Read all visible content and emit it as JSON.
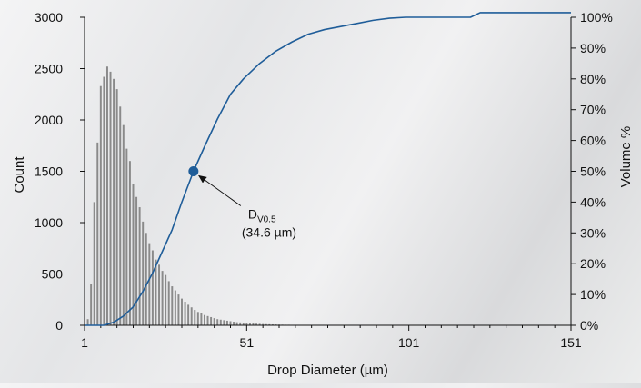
{
  "chart_data": {
    "type": "bar",
    "title": "",
    "xlabel": "Drop Diameter (µm)",
    "ylabel": "Count",
    "y2label": "Volume %",
    "xlim": [
      1,
      151
    ],
    "ylim": [
      0,
      3000
    ],
    "y2lim": [
      0,
      100
    ],
    "x_ticks": [
      "1",
      "51",
      "101",
      "151"
    ],
    "y_ticks": [
      "0",
      "500",
      "1000",
      "1500",
      "2000",
      "2500",
      "3000"
    ],
    "y2_ticks": [
      "0%",
      "10%",
      "20%",
      "30%",
      "40%",
      "50%",
      "60%",
      "70%",
      "80%",
      "90%",
      "100%"
    ],
    "grid": false,
    "legend": "none",
    "colors": {
      "bars": "#8a8a8a",
      "curve": "#1f5d99",
      "marker": "#1f5d99",
      "axis": "#111111"
    },
    "series": [
      {
        "type": "bar",
        "axis": "left",
        "x": [
          2,
          3,
          4,
          5,
          6,
          7,
          8,
          9,
          10,
          11,
          12,
          13,
          14,
          15,
          16,
          17,
          18,
          19,
          20,
          21,
          22,
          23,
          24,
          25,
          26,
          27,
          28,
          29,
          30,
          31,
          32,
          33,
          34,
          35,
          36,
          37,
          38,
          39,
          40,
          41,
          42,
          43,
          44,
          45,
          46,
          47,
          48,
          49,
          50,
          51,
          52,
          53,
          54,
          55,
          56,
          57,
          58,
          59,
          60,
          61,
          62,
          63,
          64,
          65,
          66,
          67,
          68,
          69,
          70
        ],
        "values": [
          60,
          400,
          1200,
          1780,
          2330,
          2420,
          2520,
          2470,
          2400,
          2300,
          2130,
          1950,
          1720,
          1600,
          1380,
          1250,
          1150,
          1010,
          900,
          800,
          730,
          640,
          590,
          530,
          490,
          430,
          380,
          340,
          300,
          260,
          230,
          200,
          175,
          150,
          130,
          120,
          100,
          90,
          80,
          70,
          60,
          55,
          50,
          45,
          40,
          35,
          30,
          28,
          25,
          22,
          20,
          18,
          16,
          14,
          12,
          11,
          10,
          9,
          8,
          7,
          6,
          5,
          5,
          4,
          4,
          3,
          3,
          2,
          2
        ]
      },
      {
        "type": "line",
        "axis": "right",
        "name": "",
        "x": [
          1,
          7,
          10,
          13,
          16,
          19,
          22,
          25,
          28,
          31,
          34.6,
          38,
          42,
          46,
          50,
          55,
          60,
          65,
          70,
          75,
          80,
          85,
          90,
          95,
          100,
          103,
          110,
          119,
          120,
          121,
          122,
          123,
          126,
          130,
          140,
          151
        ],
        "values": [
          0,
          0,
          1,
          3,
          6,
          11,
          17,
          24,
          31,
          40,
          50,
          58,
          67,
          75,
          80,
          85,
          89,
          92,
          94.5,
          96,
          97,
          98,
          99,
          99.7,
          100,
          100,
          100,
          100,
          100,
          100.5,
          101,
          101.5,
          101.5,
          101.5,
          101.5,
          101.5
        ]
      }
    ],
    "annotations": [
      {
        "x": 34.6,
        "y2": 50,
        "label_main": "D",
        "label_sub": "V0.5",
        "label_value": "(34.6 µm)"
      }
    ]
  }
}
